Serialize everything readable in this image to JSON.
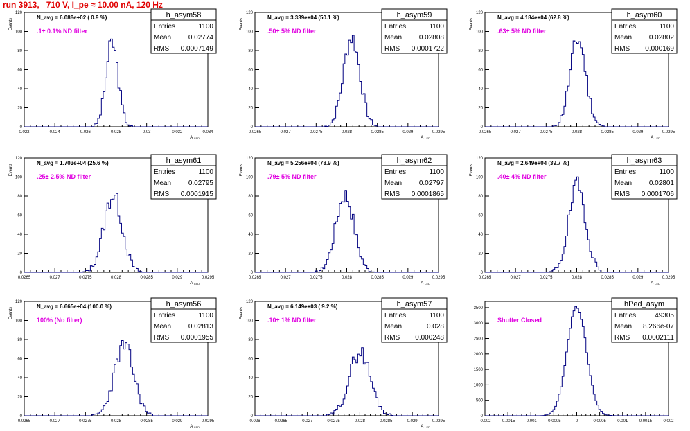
{
  "page": {
    "title": "run 3913,   710 V, I_pe ≈ 10.00 nA, 120 Hz"
  },
  "colors": {
    "line": "#000080",
    "filter_label": "#e000e0",
    "title": "#e00000"
  },
  "chart_data": [
    {
      "type": "histogram",
      "name": "h_asym58",
      "nlabel": "N_avg = 6.088e+02 ( 0.9 %)",
      "filter_label": ".1± 0.1% ND filter",
      "stats": [
        [
          "Entries",
          "1100"
        ],
        [
          "Mean",
          "0.02774"
        ],
        [
          "RMS",
          "0.0007149"
        ]
      ],
      "xlim": [
        0.022,
        0.034
      ],
      "xticks": [
        "0.022",
        "0.024",
        "0.026",
        "0.028",
        "0.03",
        "0.032",
        "0.034"
      ],
      "ylim": [
        0,
        120
      ],
      "yticks": [
        "0",
        "20",
        "40",
        "60",
        "80",
        "100",
        "120"
      ],
      "ylabel": "Events",
      "xlabel": "A_LED",
      "mean": 0.02774,
      "sigma": 0.0004,
      "peak": 88,
      "nbins": 100,
      "seed": 3
    },
    {
      "type": "histogram",
      "name": "h_asym59",
      "nlabel": "N_avg = 3.339e+04 (50.1 %)",
      "filter_label": ".50± 5% ND filter",
      "stats": [
        [
          "Entries",
          "1100"
        ],
        [
          "Mean",
          "0.02808"
        ],
        [
          "RMS",
          "0.0001722"
        ]
      ],
      "xlim": [
        0.0265,
        0.0295
      ],
      "xticks": [
        "0.0265",
        "0.027",
        "0.0275",
        "0.028",
        "0.0285",
        "0.029",
        "0.0295"
      ],
      "ylim": [
        0,
        120
      ],
      "yticks": [
        "0",
        "20",
        "40",
        "60",
        "80",
        "100",
        "120"
      ],
      "ylabel": "Events",
      "xlabel": "A_LED",
      "mean": 0.02808,
      "sigma": 0.000135,
      "peak": 94,
      "nbins": 100,
      "seed": 7
    },
    {
      "type": "histogram",
      "name": "h_asym60",
      "nlabel": "N_avg = 4.184e+04 (62.8 %)",
      "filter_label": ".63± 5% ND filter",
      "stats": [
        [
          "Entries",
          "1100"
        ],
        [
          "Mean",
          "0.02802"
        ],
        [
          "RMS",
          "0.000169"
        ]
      ],
      "xlim": [
        0.0265,
        0.0295
      ],
      "xticks": [
        "0.0265",
        "0.027",
        "0.0275",
        "0.028",
        "0.0285",
        "0.029",
        "0.0295"
      ],
      "ylim": [
        0,
        120
      ],
      "yticks": [
        "0",
        "20",
        "40",
        "60",
        "80",
        "100",
        "120"
      ],
      "ylabel": "Events",
      "xlabel": "A_LED",
      "mean": 0.02802,
      "sigma": 0.00013,
      "peak": 92,
      "nbins": 100,
      "seed": 11
    },
    {
      "type": "histogram",
      "name": "h_asym61",
      "nlabel": "N_avg = 1.703e+04 (25.6 %)",
      "filter_label": ".25± 2.5% ND filter",
      "stats": [
        [
          "Entries",
          "1100"
        ],
        [
          "Mean",
          "0.02795"
        ],
        [
          "RMS",
          "0.0001915"
        ]
      ],
      "xlim": [
        0.0265,
        0.0295
      ],
      "xticks": [
        "0.0265",
        "0.027",
        "0.0275",
        "0.028",
        "0.0285",
        "0.029",
        "0.0295"
      ],
      "ylim": [
        0,
        120
      ],
      "yticks": [
        "0",
        "20",
        "40",
        "60",
        "80",
        "100",
        "120"
      ],
      "ylabel": "Events",
      "xlabel": "A_LED",
      "mean": 0.02795,
      "sigma": 0.00015,
      "peak": 81,
      "nbins": 100,
      "seed": 13
    },
    {
      "type": "histogram",
      "name": "h_asym62",
      "nlabel": "N_avg = 5.256e+04 (78.9 %)",
      "filter_label": ".79± 5% ND filter",
      "stats": [
        [
          "Entries",
          "1100"
        ],
        [
          "Mean",
          "0.02797"
        ],
        [
          "RMS",
          "0.0001865"
        ]
      ],
      "xlim": [
        0.0265,
        0.0295
      ],
      "xticks": [
        "0.0265",
        "0.027",
        "0.0275",
        "0.028",
        "0.0285",
        "0.029",
        "0.0295"
      ],
      "ylim": [
        0,
        120
      ],
      "yticks": [
        "0",
        "20",
        "40",
        "60",
        "80",
        "100",
        "120"
      ],
      "ylabel": "Events",
      "xlabel": "A_LED",
      "mean": 0.02797,
      "sigma": 0.00015,
      "peak": 82,
      "nbins": 100,
      "seed": 17
    },
    {
      "type": "histogram",
      "name": "h_asym63",
      "nlabel": "N_avg = 2.649e+04 (39.7 %)",
      "filter_label": ".40± 4% ND filter",
      "stats": [
        [
          "Entries",
          "1100"
        ],
        [
          "Mean",
          "0.02801"
        ],
        [
          "RMS",
          "0.0001706"
        ]
      ],
      "xlim": [
        0.0265,
        0.0295
      ],
      "xticks": [
        "0.0265",
        "0.027",
        "0.0275",
        "0.028",
        "0.0285",
        "0.029",
        "0.0295"
      ],
      "ylim": [
        0,
        120
      ],
      "yticks": [
        "0",
        "20",
        "40",
        "60",
        "80",
        "100",
        "120"
      ],
      "ylabel": "Events",
      "xlabel": "A_LED",
      "mean": 0.02801,
      "sigma": 0.00014,
      "peak": 90,
      "nbins": 100,
      "seed": 19
    },
    {
      "type": "histogram",
      "name": "h_asym56",
      "nlabel": "N_avg = 6.665e+04 (100.0 %)",
      "filter_label": "100% (No filter)",
      "stats": [
        [
          "Entries",
          "1100"
        ],
        [
          "Mean",
          "0.02813"
        ],
        [
          "RMS",
          "0.0001955"
        ]
      ],
      "xlim": [
        0.0265,
        0.0295
      ],
      "xticks": [
        "0.0265",
        "0.027",
        "0.0275",
        "0.028",
        "0.0285",
        "0.029",
        "0.0295"
      ],
      "ylim": [
        0,
        120
      ],
      "yticks": [
        "0",
        "20",
        "40",
        "60",
        "80",
        "100",
        "120"
      ],
      "ylabel": "Events",
      "xlabel": "A_LED",
      "mean": 0.02813,
      "sigma": 0.00016,
      "peak": 73,
      "nbins": 100,
      "seed": 23
    },
    {
      "type": "histogram",
      "name": "h_asym57",
      "nlabel": "N_avg = 6.149e+03 ( 9.2 %)",
      "filter_label": ".10± 1% ND filter",
      "stats": [
        [
          "Entries",
          "1100"
        ],
        [
          "Mean",
          "0.028"
        ],
        [
          "RMS",
          "0.000248"
        ]
      ],
      "xlim": [
        0.026,
        0.0295
      ],
      "xticks": [
        "0.026",
        "0.0265",
        "0.027",
        "0.0275",
        "0.028",
        "0.0285",
        "0.029",
        "0.0295"
      ],
      "ylim": [
        0,
        120
      ],
      "yticks": [
        "0",
        "20",
        "40",
        "60",
        "80",
        "100",
        "120"
      ],
      "ylabel": "Events",
      "xlabel": "A_LED",
      "mean": 0.028,
      "sigma": 0.0002,
      "peak": 67,
      "nbins": 100,
      "seed": 29
    },
    {
      "type": "histogram",
      "name": "hPed_asym",
      "nlabel": "",
      "filter_label": "Shutter Closed",
      "stats": [
        [
          "Entries",
          "49305"
        ],
        [
          "Mean",
          "8.266e-07"
        ],
        [
          "RMS",
          "0.0002111"
        ]
      ],
      "xlim": [
        -0.002,
        0.002
      ],
      "xticks": [
        "-0.002",
        "-0.0015",
        "-0.001",
        "-0.0005",
        "0",
        "0.0005",
        "0.001",
        "0.0015",
        "0.002"
      ],
      "ylim": [
        0,
        3700
      ],
      "yticks": [
        "0",
        "500",
        "1000",
        "1500",
        "2000",
        "2500",
        "3000",
        "3500"
      ],
      "ylabel": "",
      "xlabel": "",
      "mean": 8.266e-07,
      "sigma": 0.00021,
      "peak": 3550,
      "nbins": 100,
      "seed": 31
    }
  ]
}
